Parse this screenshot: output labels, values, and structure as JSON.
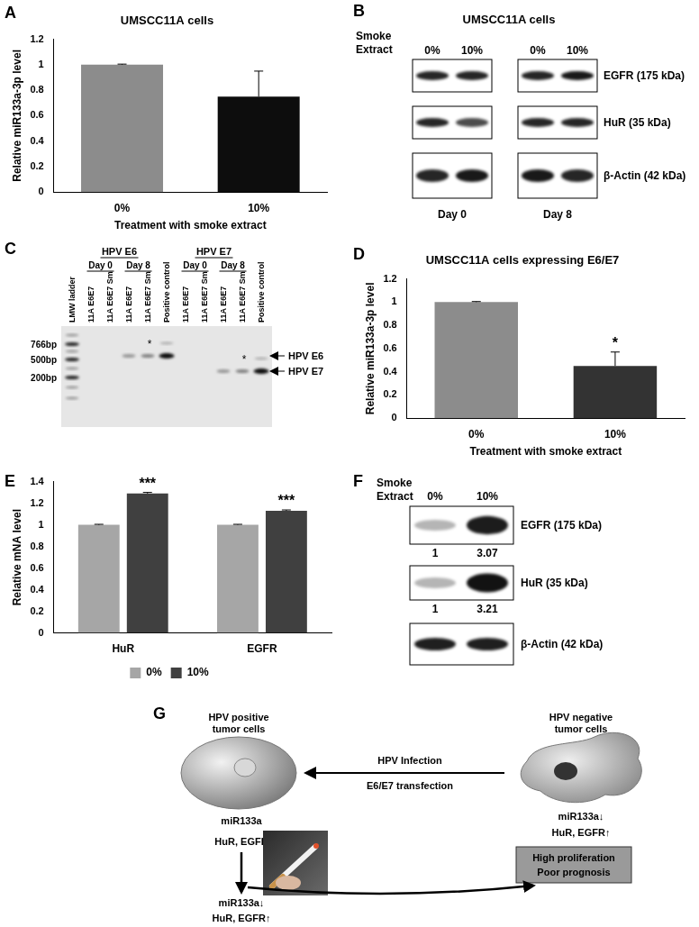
{
  "chart_data": [
    {
      "panel_label": "A",
      "type": "bar",
      "title": "UMSCC11A cells",
      "x_label": "Treatment with smoke extract",
      "y_label": "Relative miR133a-3p level",
      "categories": [
        "0%",
        "10%"
      ],
      "values": [
        1,
        0.75
      ],
      "errors": [
        0.005,
        0.2
      ],
      "colors": [
        "#8c8c8c",
        "#0d0d0d"
      ],
      "ylim": [
        0,
        1.2
      ],
      "yticks": [
        0,
        0.2,
        0.4,
        0.6,
        0.8,
        1,
        1.2
      ],
      "grid": false
    },
    {
      "panel_label": "D",
      "type": "bar",
      "title": "UMSCC11A cells expressing E6/E7",
      "x_label": "Treatment with smoke extract",
      "y_label": "Relative miR133a-3p level",
      "categories": [
        "0%",
        "10%"
      ],
      "values": [
        1,
        0.45
      ],
      "errors": [
        0.005,
        0.12
      ],
      "significance": [
        null,
        "*"
      ],
      "colors": [
        "#8c8c8c",
        "#333333"
      ],
      "ylim": [
        0,
        1.2
      ],
      "yticks": [
        0,
        0.2,
        0.4,
        0.6,
        0.8,
        1,
        1.2
      ],
      "grid": false
    },
    {
      "panel_label": "E",
      "type": "bar",
      "y_label": "Relative mNA level",
      "categories": [
        "HuR",
        "EGFR"
      ],
      "series": [
        {
          "name": "0%",
          "color": "#a6a6a6",
          "values": [
            1,
            1
          ],
          "errors": [
            0.005,
            0.005
          ]
        },
        {
          "name": "10%",
          "color": "#404040",
          "values": [
            1.29,
            1.13
          ],
          "errors": [
            0.01,
            0.008
          ],
          "significance": [
            "***",
            "***"
          ]
        }
      ],
      "ylim": [
        0,
        1.4
      ],
      "yticks": [
        0,
        0.2,
        0.4,
        0.6,
        0.8,
        1,
        1.2,
        1.4
      ],
      "legend": "bottom",
      "grid": false
    }
  ],
  "blots_B": {
    "panel_label": "B",
    "title": "UMSCC11A cells",
    "treatment_label": "Smoke Extract",
    "conditions": [
      "0%",
      "10%"
    ],
    "days": [
      "Day 0",
      "Day 8"
    ],
    "proteins": [
      "EGFR (175 kDa)",
      "HuR (35 kDa)",
      "β-Actin (42 kDa)"
    ]
  },
  "gel": {
    "panel_label": "C",
    "ladder": "LMW ladder",
    "sizes": [
      "766bp",
      "500bp",
      "200bp"
    ],
    "groups": [
      {
        "title": "HPV E6",
        "days": [
          {
            "label": "Day 0",
            "lanes": [
              "11A E6E7",
              "11A E6E7 Sm"
            ]
          },
          {
            "label": "Day 8",
            "lanes": [
              "11A E6E7",
              "11A E6E7 Sm"
            ]
          }
        ],
        "control": "Positive control",
        "band_label": "HPV E6",
        "marker": "*"
      },
      {
        "title": "HPV E7",
        "days": [
          {
            "label": "Day 0",
            "lanes": [
              "11A E6E7",
              "11A E6E7 Sm"
            ]
          },
          {
            "label": "Day 8",
            "lanes": [
              "11A E6E7",
              "11A E6E7 Sm"
            ]
          }
        ],
        "control": "Positive control",
        "band_label": "HPV E7",
        "marker": "*"
      }
    ]
  },
  "blots_F": {
    "panel_label": "F",
    "treatment_label": "Smoke Extract",
    "conditions": [
      "0%",
      "10%"
    ],
    "proteins": [
      {
        "name": "EGFR (175 kDa)",
        "quantification": [
          1,
          3.07
        ]
      },
      {
        "name": "HuR (35 kDa)",
        "quantification": [
          1,
          3.21
        ]
      },
      {
        "name": "β-Actin (42 kDa)"
      }
    ]
  },
  "diagram_G": {
    "panel_label": "G",
    "hpv_positive": {
      "label": "HPV positive tumor cells",
      "markers": [
        "miR133a",
        "HuR, EGFR"
      ]
    },
    "hpv_negative": {
      "label": "HPV negative tumor cells",
      "markers": [
        "miR133a↓",
        "HuR, EGFR↑"
      ]
    },
    "conversion": [
      "HPV Infection",
      "E6/E7 transfection"
    ],
    "outcome": [
      "High proliferation",
      "Poor prognosis"
    ],
    "smoking_result": [
      "miR133a↓",
      "HuR, EGFR↑"
    ]
  }
}
